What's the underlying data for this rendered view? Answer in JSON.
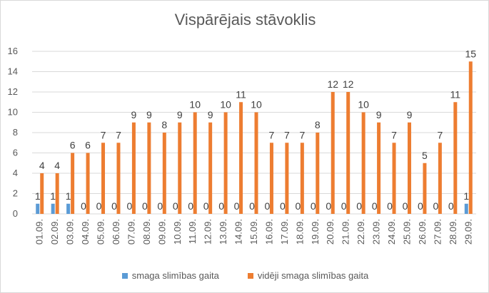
{
  "chart_data": {
    "type": "bar",
    "title": "Vispārējais stāvoklis",
    "categories": [
      "01.09.",
      "02.09.",
      "03.09.",
      "04.09.",
      "05.09.",
      "06.09.",
      "07.09.",
      "08.09.",
      "09.09.",
      "10.09.",
      "11.09.",
      "12.09.",
      "13.09.",
      "14.09.",
      "15.09.",
      "16.09.",
      "17.09.",
      "18.09.",
      "19.09.",
      "20.09.",
      "21.09.",
      "22.09.",
      "23.09.",
      "24.09.",
      "25.09.",
      "26.09.",
      "27.09.",
      "28.09.",
      "29.09."
    ],
    "series": [
      {
        "name": "smaga slimības gaita",
        "color": "#5B9BD5",
        "values": [
          1,
          1,
          1,
          0,
          0,
          0,
          0,
          0,
          0,
          0,
          0,
          0,
          0,
          0,
          0,
          0,
          0,
          0,
          0,
          0,
          0,
          0,
          0,
          0,
          0,
          0,
          0,
          0,
          1
        ]
      },
      {
        "name": "vidēji smaga slimības gaita",
        "color": "#ED7D31",
        "values": [
          4,
          4,
          6,
          6,
          7,
          7,
          9,
          9,
          8,
          9,
          10,
          9,
          10,
          11,
          10,
          7,
          7,
          7,
          8,
          12,
          12,
          10,
          9,
          7,
          9,
          5,
          7,
          11,
          15
        ]
      }
    ],
    "ylim": [
      0,
      16
    ],
    "yticks": [
      0,
      2,
      4,
      6,
      8,
      10,
      12,
      14,
      16
    ],
    "grid": true,
    "legend": "bottom"
  }
}
